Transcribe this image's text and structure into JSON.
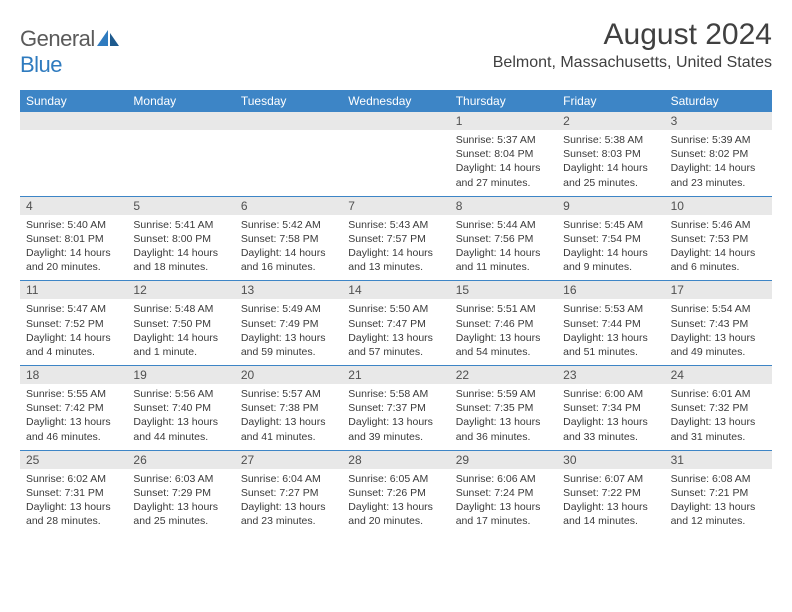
{
  "logo": {
    "text_general": "General",
    "text_blue": "Blue"
  },
  "title": "August 2024",
  "location": "Belmont, Massachusetts, United States",
  "colors": {
    "header_bg": "#3d85c6",
    "header_text": "#ffffff",
    "daynum_bg": "#e8e8e8",
    "border": "#3d85c6",
    "logo_gray": "#5a5a5a",
    "logo_blue": "#2f7bbf",
    "body_text": "#3a3a3a"
  },
  "day_names": [
    "Sunday",
    "Monday",
    "Tuesday",
    "Wednesday",
    "Thursday",
    "Friday",
    "Saturday"
  ],
  "weeks": [
    [
      {
        "n": "",
        "sunrise": "",
        "sunset": "",
        "daylight": ""
      },
      {
        "n": "",
        "sunrise": "",
        "sunset": "",
        "daylight": ""
      },
      {
        "n": "",
        "sunrise": "",
        "sunset": "",
        "daylight": ""
      },
      {
        "n": "",
        "sunrise": "",
        "sunset": "",
        "daylight": ""
      },
      {
        "n": "1",
        "sunrise": "Sunrise: 5:37 AM",
        "sunset": "Sunset: 8:04 PM",
        "daylight": "Daylight: 14 hours and 27 minutes."
      },
      {
        "n": "2",
        "sunrise": "Sunrise: 5:38 AM",
        "sunset": "Sunset: 8:03 PM",
        "daylight": "Daylight: 14 hours and 25 minutes."
      },
      {
        "n": "3",
        "sunrise": "Sunrise: 5:39 AM",
        "sunset": "Sunset: 8:02 PM",
        "daylight": "Daylight: 14 hours and 23 minutes."
      }
    ],
    [
      {
        "n": "4",
        "sunrise": "Sunrise: 5:40 AM",
        "sunset": "Sunset: 8:01 PM",
        "daylight": "Daylight: 14 hours and 20 minutes."
      },
      {
        "n": "5",
        "sunrise": "Sunrise: 5:41 AM",
        "sunset": "Sunset: 8:00 PM",
        "daylight": "Daylight: 14 hours and 18 minutes."
      },
      {
        "n": "6",
        "sunrise": "Sunrise: 5:42 AM",
        "sunset": "Sunset: 7:58 PM",
        "daylight": "Daylight: 14 hours and 16 minutes."
      },
      {
        "n": "7",
        "sunrise": "Sunrise: 5:43 AM",
        "sunset": "Sunset: 7:57 PM",
        "daylight": "Daylight: 14 hours and 13 minutes."
      },
      {
        "n": "8",
        "sunrise": "Sunrise: 5:44 AM",
        "sunset": "Sunset: 7:56 PM",
        "daylight": "Daylight: 14 hours and 11 minutes."
      },
      {
        "n": "9",
        "sunrise": "Sunrise: 5:45 AM",
        "sunset": "Sunset: 7:54 PM",
        "daylight": "Daylight: 14 hours and 9 minutes."
      },
      {
        "n": "10",
        "sunrise": "Sunrise: 5:46 AM",
        "sunset": "Sunset: 7:53 PM",
        "daylight": "Daylight: 14 hours and 6 minutes."
      }
    ],
    [
      {
        "n": "11",
        "sunrise": "Sunrise: 5:47 AM",
        "sunset": "Sunset: 7:52 PM",
        "daylight": "Daylight: 14 hours and 4 minutes."
      },
      {
        "n": "12",
        "sunrise": "Sunrise: 5:48 AM",
        "sunset": "Sunset: 7:50 PM",
        "daylight": "Daylight: 14 hours and 1 minute."
      },
      {
        "n": "13",
        "sunrise": "Sunrise: 5:49 AM",
        "sunset": "Sunset: 7:49 PM",
        "daylight": "Daylight: 13 hours and 59 minutes."
      },
      {
        "n": "14",
        "sunrise": "Sunrise: 5:50 AM",
        "sunset": "Sunset: 7:47 PM",
        "daylight": "Daylight: 13 hours and 57 minutes."
      },
      {
        "n": "15",
        "sunrise": "Sunrise: 5:51 AM",
        "sunset": "Sunset: 7:46 PM",
        "daylight": "Daylight: 13 hours and 54 minutes."
      },
      {
        "n": "16",
        "sunrise": "Sunrise: 5:53 AM",
        "sunset": "Sunset: 7:44 PM",
        "daylight": "Daylight: 13 hours and 51 minutes."
      },
      {
        "n": "17",
        "sunrise": "Sunrise: 5:54 AM",
        "sunset": "Sunset: 7:43 PM",
        "daylight": "Daylight: 13 hours and 49 minutes."
      }
    ],
    [
      {
        "n": "18",
        "sunrise": "Sunrise: 5:55 AM",
        "sunset": "Sunset: 7:42 PM",
        "daylight": "Daylight: 13 hours and 46 minutes."
      },
      {
        "n": "19",
        "sunrise": "Sunrise: 5:56 AM",
        "sunset": "Sunset: 7:40 PM",
        "daylight": "Daylight: 13 hours and 44 minutes."
      },
      {
        "n": "20",
        "sunrise": "Sunrise: 5:57 AM",
        "sunset": "Sunset: 7:38 PM",
        "daylight": "Daylight: 13 hours and 41 minutes."
      },
      {
        "n": "21",
        "sunrise": "Sunrise: 5:58 AM",
        "sunset": "Sunset: 7:37 PM",
        "daylight": "Daylight: 13 hours and 39 minutes."
      },
      {
        "n": "22",
        "sunrise": "Sunrise: 5:59 AM",
        "sunset": "Sunset: 7:35 PM",
        "daylight": "Daylight: 13 hours and 36 minutes."
      },
      {
        "n": "23",
        "sunrise": "Sunrise: 6:00 AM",
        "sunset": "Sunset: 7:34 PM",
        "daylight": "Daylight: 13 hours and 33 minutes."
      },
      {
        "n": "24",
        "sunrise": "Sunrise: 6:01 AM",
        "sunset": "Sunset: 7:32 PM",
        "daylight": "Daylight: 13 hours and 31 minutes."
      }
    ],
    [
      {
        "n": "25",
        "sunrise": "Sunrise: 6:02 AM",
        "sunset": "Sunset: 7:31 PM",
        "daylight": "Daylight: 13 hours and 28 minutes."
      },
      {
        "n": "26",
        "sunrise": "Sunrise: 6:03 AM",
        "sunset": "Sunset: 7:29 PM",
        "daylight": "Daylight: 13 hours and 25 minutes."
      },
      {
        "n": "27",
        "sunrise": "Sunrise: 6:04 AM",
        "sunset": "Sunset: 7:27 PM",
        "daylight": "Daylight: 13 hours and 23 minutes."
      },
      {
        "n": "28",
        "sunrise": "Sunrise: 6:05 AM",
        "sunset": "Sunset: 7:26 PM",
        "daylight": "Daylight: 13 hours and 20 minutes."
      },
      {
        "n": "29",
        "sunrise": "Sunrise: 6:06 AM",
        "sunset": "Sunset: 7:24 PM",
        "daylight": "Daylight: 13 hours and 17 minutes."
      },
      {
        "n": "30",
        "sunrise": "Sunrise: 6:07 AM",
        "sunset": "Sunset: 7:22 PM",
        "daylight": "Daylight: 13 hours and 14 minutes."
      },
      {
        "n": "31",
        "sunrise": "Sunrise: 6:08 AM",
        "sunset": "Sunset: 7:21 PM",
        "daylight": "Daylight: 13 hours and 12 minutes."
      }
    ]
  ]
}
